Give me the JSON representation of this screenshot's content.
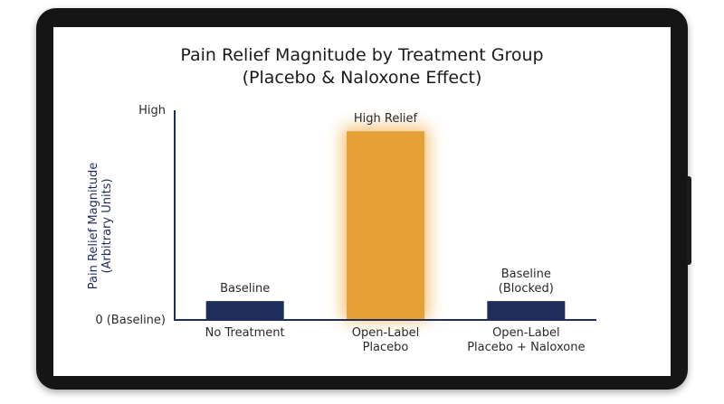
{
  "chart_data": {
    "type": "bar",
    "title": "Pain Relief Magnitude by Treatment Group",
    "subtitle": "(Placebo & Naloxone Effect)",
    "ylabel": [
      "Pain Relief Magnitude",
      "(Arbitrary Units)"
    ],
    "y_tick_labels": {
      "bottom": "0 (Baseline)",
      "top": "High"
    },
    "ylim": [
      0,
      100
    ],
    "grid": false,
    "categories": [
      [
        "No Treatment"
      ],
      [
        "Open-Label",
        "Placebo"
      ],
      [
        "Open-Label",
        "Placebo + Naloxone"
      ]
    ],
    "values": [
      9,
      90,
      9
    ],
    "data_labels": [
      [
        "Baseline"
      ],
      [
        "High Relief"
      ],
      [
        "Baseline",
        "(Blocked)"
      ]
    ],
    "colors": [
      "#1e2d5a",
      "#e5a136",
      "#1e2d5a"
    ],
    "highlight_glow": "#f3b55c"
  }
}
